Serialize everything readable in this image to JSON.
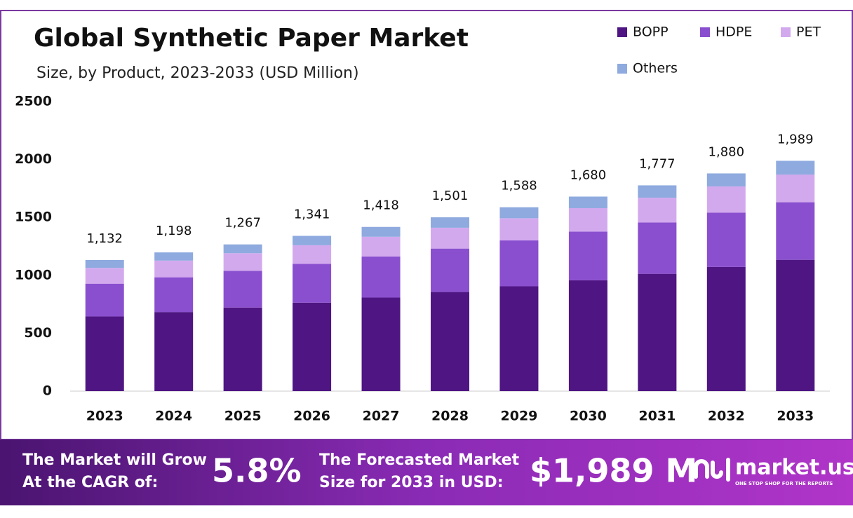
{
  "chart_data": {
    "type": "stacked_bar",
    "title": "Global Synthetic Paper Market",
    "subtitle": "Size, by Product, 2023-2033 (USD Million)",
    "categories": [
      "2023",
      "2024",
      "2025",
      "2026",
      "2027",
      "2028",
      "2029",
      "2030",
      "2031",
      "2032",
      "2033"
    ],
    "series": [
      {
        "name": "BOPP",
        "color": "#4e1583",
        "values": [
          645,
          683,
          722,
          764,
          808,
          856,
          905,
          958,
          1013,
          1072,
          1134
        ]
      },
      {
        "name": "HDPE",
        "color": "#8a4fcf",
        "values": [
          283,
          300,
          317,
          335,
          355,
          375,
          397,
          420,
          444,
          470,
          497
        ]
      },
      {
        "name": "PET",
        "color": "#d3a9ee",
        "values": [
          136,
          144,
          152,
          161,
          170,
          180,
          191,
          202,
          213,
          226,
          239
        ]
      },
      {
        "name": "Others",
        "color": "#8eaadf",
        "values": [
          68,
          71,
          76,
          81,
          85,
          90,
          95,
          100,
          107,
          112,
          119
        ]
      }
    ],
    "totals": [
      1132,
      1198,
      1267,
      1341,
      1418,
      1501,
      1588,
      1680,
      1777,
      1880,
      1989
    ],
    "total_labels": [
      "1,132",
      "1,198",
      "1,267",
      "1,341",
      "1,418",
      "1,501",
      "1,588",
      "1,680",
      "1,777",
      "1,880",
      "1,989"
    ],
    "ylim": [
      0,
      2500
    ],
    "yticks": [
      0,
      500,
      1000,
      1500,
      2000,
      2500
    ],
    "grid": false
  },
  "footer": {
    "cagr_line1": "The Market will Grow",
    "cagr_line2": "At the CAGR of:",
    "cagr": "5.8%",
    "forecast_line1": "The Forecasted Market",
    "forecast_line2": "Size for 2033 in USD:",
    "forecast": "$1,989 M",
    "brand": "market.us",
    "tagline": "ONE STOP SHOP FOR THE REPORTS"
  }
}
